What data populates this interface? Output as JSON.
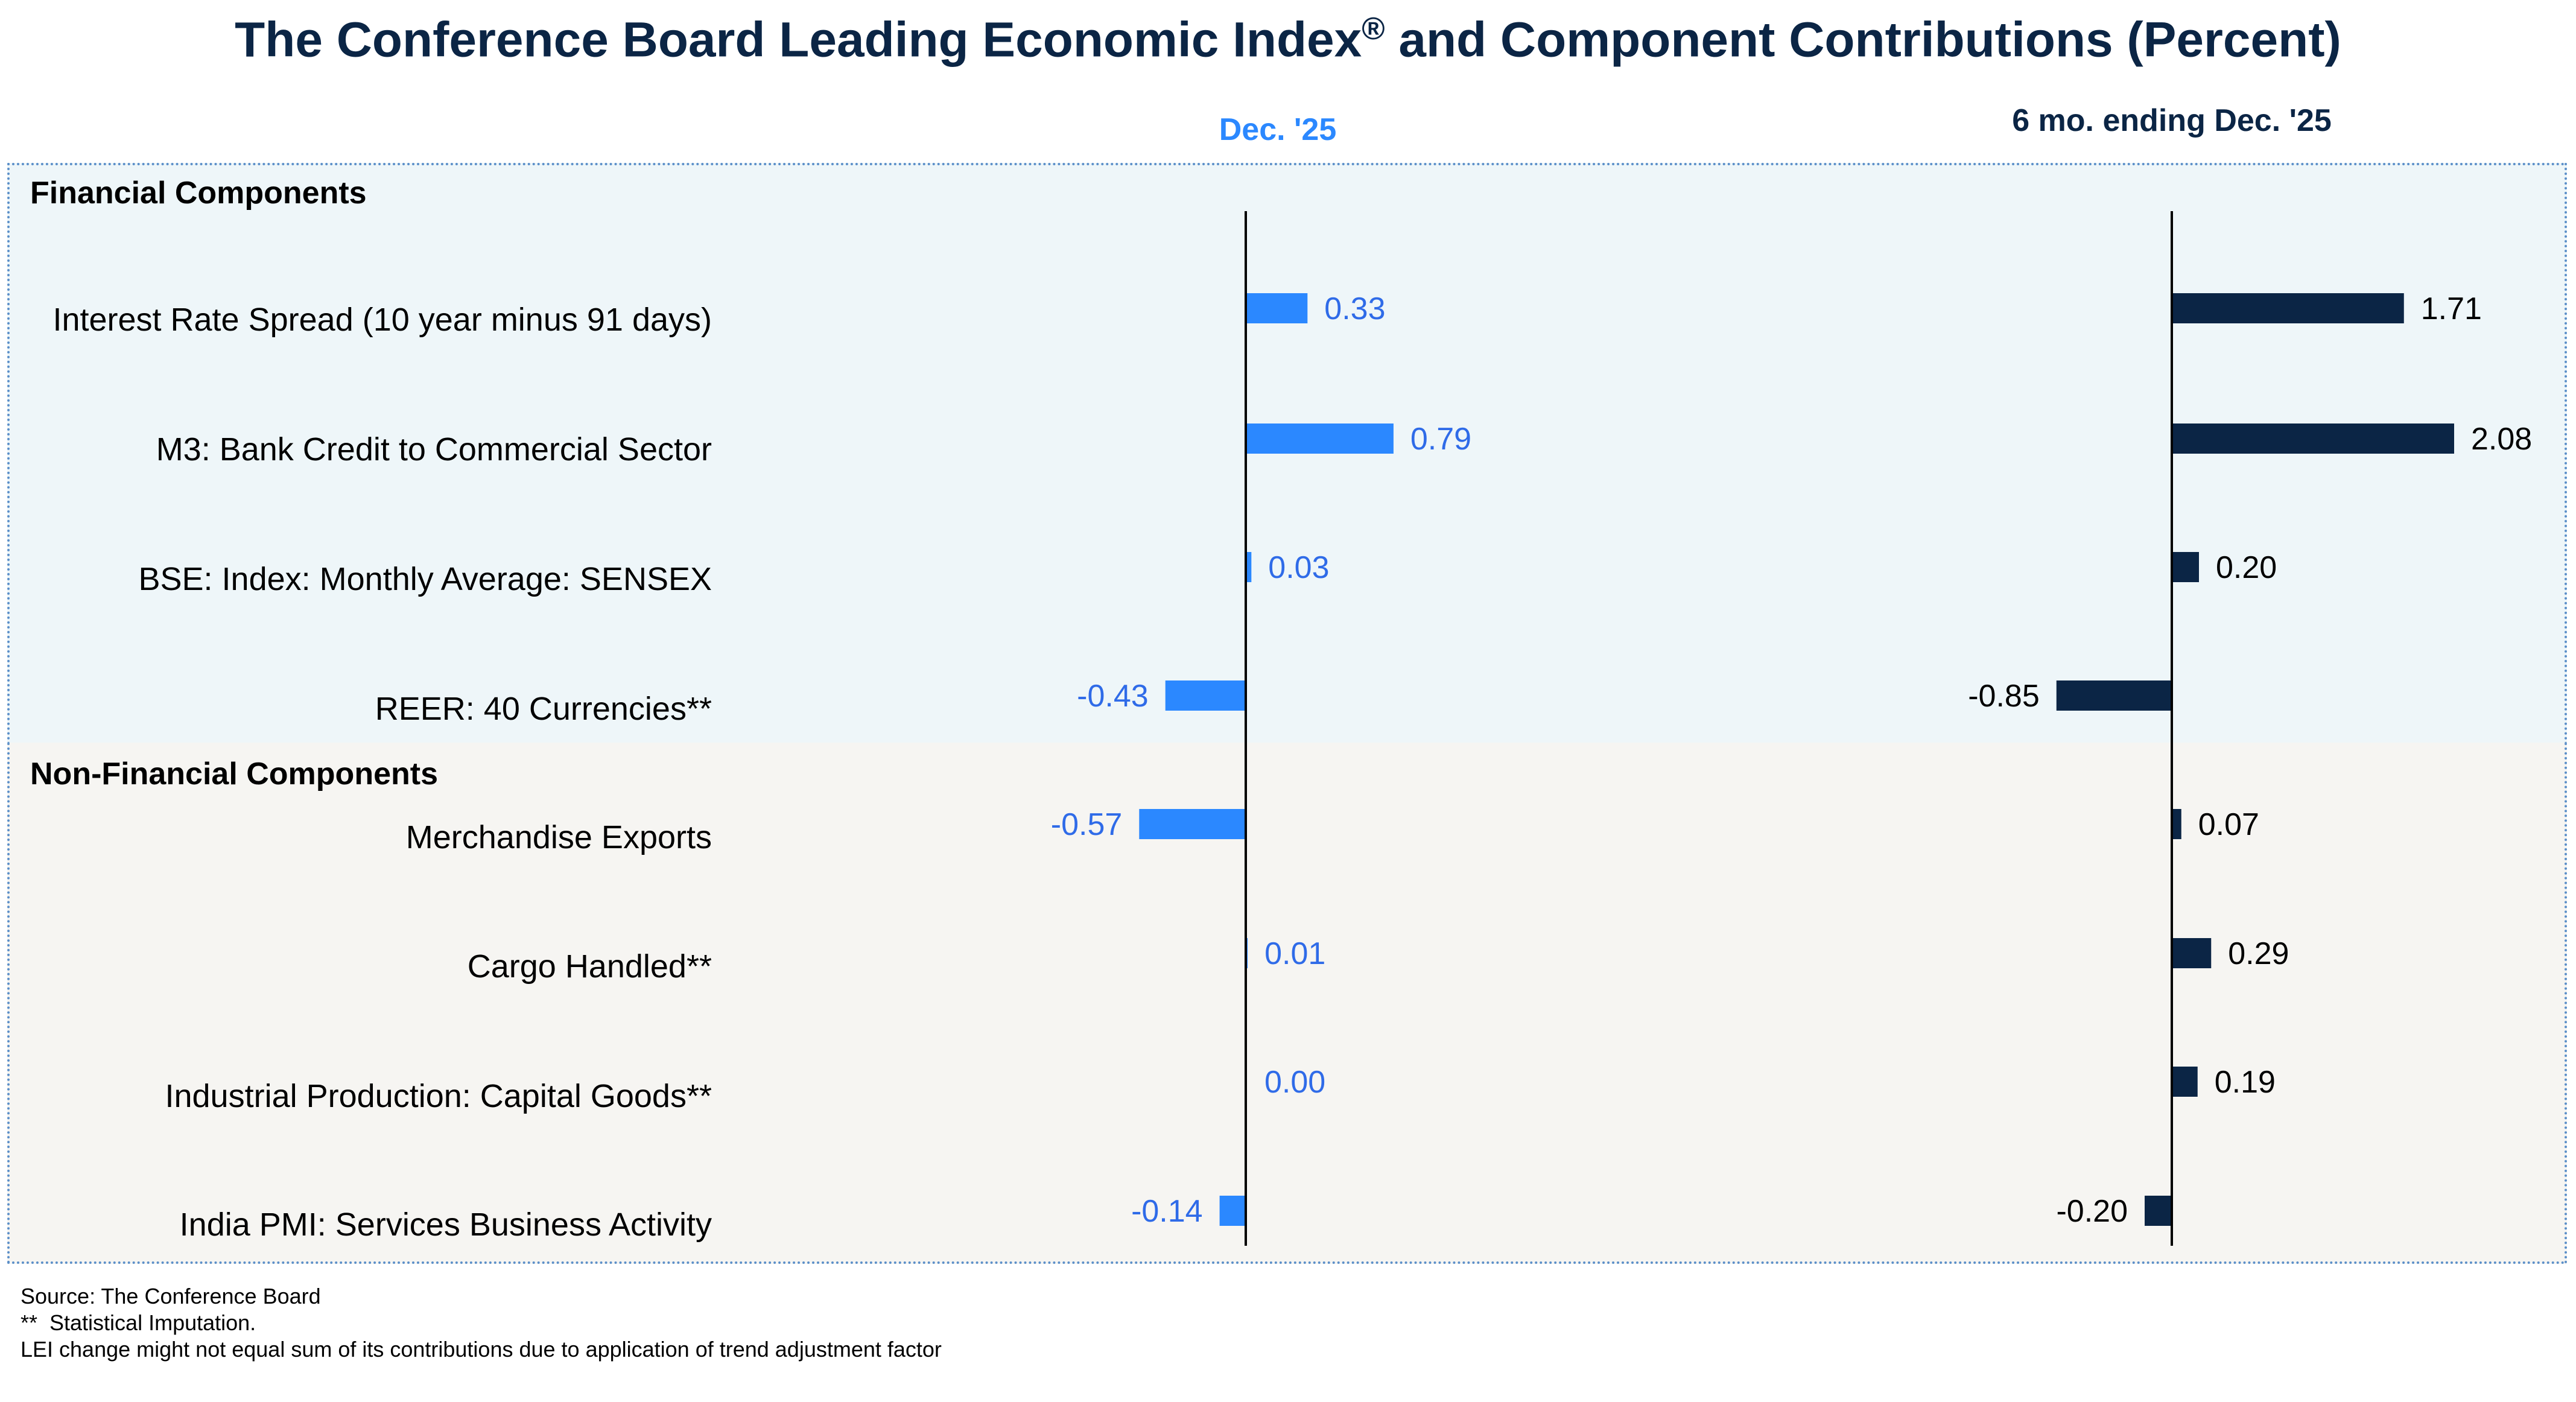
{
  "chart_data": {
    "type": "bar",
    "orientation": "horizontal",
    "title": "The Conference Board Leading Economic Index",
    "title_mark": "®",
    "title_suffix": " and Component Contributions (Percent)",
    "categories": [
      "Interest Rate Spread (10 year minus 91 days)",
      "M3: Bank Credit to Commercial Sector",
      "BSE: Index: Monthly Average: SENSEX",
      "REER: 40 Currencies**",
      "Merchandise Exports",
      "Cargo Handled**",
      "Industrial Production: Capital Goods**",
      "India PMI: Services Business Activity"
    ],
    "groups": [
      {
        "name": "Financial Components",
        "start": 0,
        "end": 3,
        "background": "#eef6f9"
      },
      {
        "name": "Non-Financial Components",
        "start": 4,
        "end": 7,
        "background": "#f6f5f2"
      }
    ],
    "series": [
      {
        "name": "Dec. '25",
        "bar_color": "#2b88ff",
        "label_color": "#2f6be8",
        "values": [
          0.33,
          0.79,
          0.03,
          -0.43,
          -0.57,
          0.01,
          0.0,
          -0.14
        ],
        "labels": [
          "0.33",
          "0.79",
          "0.03",
          "-0.43",
          "-0.57",
          "0.01",
          "0.00",
          "-0.14"
        ]
      },
      {
        "name": "6 mo. ending Dec. '25",
        "bar_color": "#0b2545",
        "label_color": "#000000",
        "values": [
          1.71,
          2.08,
          0.2,
          -0.85,
          0.07,
          0.29,
          0.19,
          -0.2
        ],
        "labels": [
          "1.71",
          "2.08",
          "0.20",
          "-0.85",
          "0.07",
          "0.29",
          "0.19",
          "-0.20"
        ]
      }
    ],
    "xlabel": "",
    "ylabel": "",
    "grid": false,
    "legend": "none"
  },
  "footer": {
    "source": "Source: The Conference Board",
    "note1": "**  Statistical Imputation.",
    "note2": "LEI change might not equal sum of its contributions due to application of trend adjustment factor"
  }
}
